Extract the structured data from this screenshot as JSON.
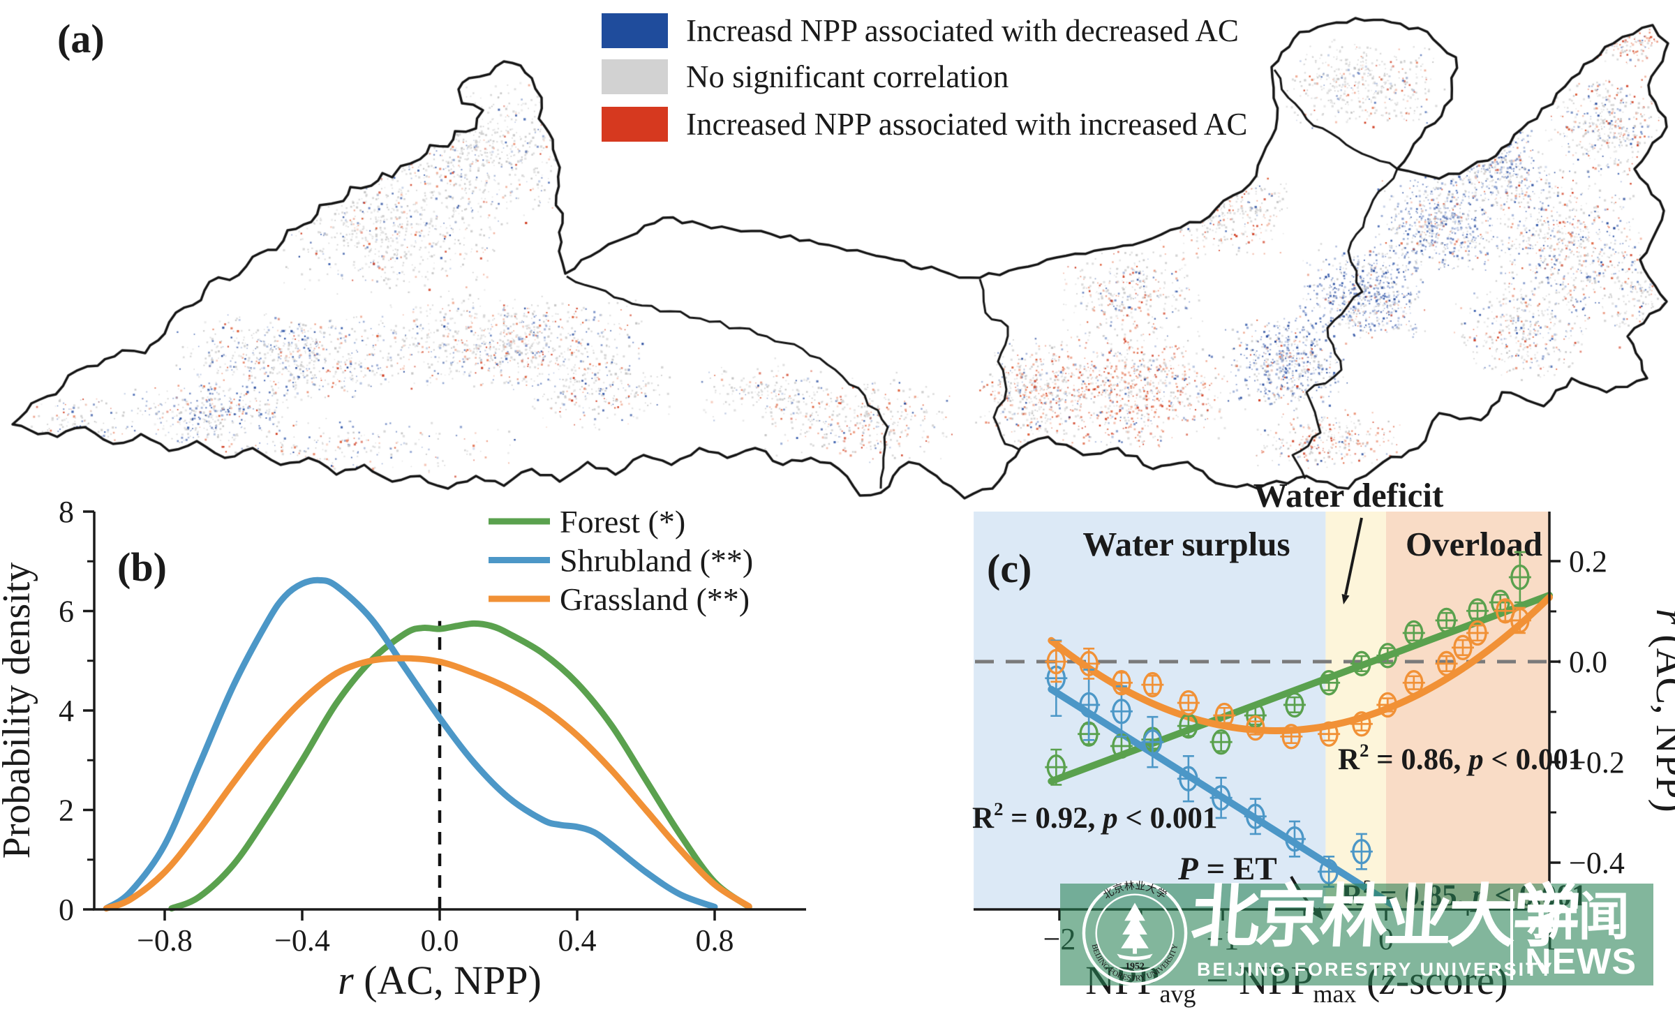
{
  "panel_a": {
    "label": "(a)",
    "legend": [
      {
        "key": "increase-npp-decrease-ac",
        "color": "#1f4c9c",
        "label": "Increasd NPP associated with decreased AC"
      },
      {
        "key": "no-significant",
        "color": "#d2d2d2",
        "label": "No significant correlation"
      },
      {
        "key": "increase-npp-increase-ac",
        "color": "#d6391f",
        "label": "Increased NPP associated with increased AC"
      }
    ],
    "map": {
      "border_color": "#151515",
      "dot_colors": {
        "gray": [
          "#d8d8d8",
          "#cccccc",
          "#c2c2c2"
        ],
        "blue": [
          "#24489b",
          "#3a5fae",
          "#6d86c2",
          "#9db0d6"
        ],
        "red": [
          "#cf3a1e",
          "#dd5c36",
          "#e98666",
          "#f0b09a"
        ]
      }
    }
  },
  "chart_data": [
    {
      "id": "b",
      "type": "line",
      "panel": "(b)",
      "title": "",
      "xlabel": "r (AC, NPP)",
      "xlabel_parts": [
        {
          "t": "r",
          "italic": true
        },
        {
          "t": " (AC, NPP)"
        }
      ],
      "ylabel": "Probability density",
      "xlim": [
        -1.02,
        1.06
      ],
      "ylim": [
        0,
        8
      ],
      "xticks": [
        {
          "v": -0.8,
          "label": "−0.8"
        },
        {
          "v": -0.4,
          "label": "−0.4"
        },
        {
          "v": 0.0,
          "label": "0.0"
        },
        {
          "v": 0.4,
          "label": "0.4"
        },
        {
          "v": 0.8,
          "label": "0.8"
        }
      ],
      "yticks": [
        {
          "v": 0,
          "label": "0"
        },
        {
          "v": 2,
          "label": "2"
        },
        {
          "v": 4,
          "label": "4"
        },
        {
          "v": 6,
          "label": "6"
        },
        {
          "v": 8,
          "label": "8"
        }
      ],
      "yticks_minor": [
        1,
        3,
        5,
        7
      ],
      "vline": {
        "x": 0.0,
        "style": "dashed",
        "color": "#111111",
        "top": 5.8
      },
      "legend_position": "upper right",
      "grid": false,
      "series": [
        {
          "name": "Forest (*)",
          "color": "#5aa14e",
          "x": [
            -0.78,
            -0.7,
            -0.6,
            -0.5,
            -0.4,
            -0.3,
            -0.2,
            -0.1,
            -0.05,
            0.0,
            0.05,
            0.1,
            0.15,
            0.2,
            0.3,
            0.4,
            0.5,
            0.6,
            0.7,
            0.8,
            0.9
          ],
          "y": [
            0.02,
            0.25,
            0.9,
            1.9,
            3.0,
            4.15,
            5.0,
            5.55,
            5.66,
            5.64,
            5.7,
            5.75,
            5.7,
            5.55,
            5.15,
            4.55,
            3.7,
            2.6,
            1.5,
            0.55,
            0.05
          ]
        },
        {
          "name": "Shrubland (**)",
          "color": "#4c97c7",
          "x": [
            -0.97,
            -0.9,
            -0.8,
            -0.7,
            -0.6,
            -0.5,
            -0.45,
            -0.4,
            -0.35,
            -0.3,
            -0.2,
            -0.1,
            0.0,
            0.1,
            0.2,
            0.3,
            0.35,
            0.4,
            0.45,
            0.5,
            0.6,
            0.7,
            0.8
          ],
          "y": [
            0.02,
            0.35,
            1.3,
            2.9,
            4.5,
            5.8,
            6.3,
            6.55,
            6.62,
            6.5,
            5.85,
            4.85,
            3.85,
            2.95,
            2.25,
            1.8,
            1.7,
            1.66,
            1.55,
            1.3,
            0.75,
            0.3,
            0.05
          ]
        },
        {
          "name": "Grassland (**)",
          "color": "#f19136",
          "x": [
            -0.97,
            -0.9,
            -0.8,
            -0.7,
            -0.6,
            -0.5,
            -0.4,
            -0.3,
            -0.2,
            -0.1,
            0.0,
            0.1,
            0.2,
            0.3,
            0.4,
            0.5,
            0.6,
            0.7,
            0.8,
            0.9
          ],
          "y": [
            0.02,
            0.2,
            0.75,
            1.6,
            2.55,
            3.45,
            4.2,
            4.75,
            5.0,
            5.05,
            4.98,
            4.75,
            4.45,
            4.05,
            3.5,
            2.8,
            2.0,
            1.2,
            0.5,
            0.06
          ]
        }
      ]
    },
    {
      "id": "c",
      "type": "scatter",
      "panel": "(c)",
      "xlabel": "NPPavg − NPPmax (z-score)",
      "xlabel_parts": [
        {
          "t": "NPP"
        },
        {
          "t": "avg",
          "sub": true
        },
        {
          "t": " − NPP"
        },
        {
          "t": "max",
          "sub": true
        },
        {
          "t": " ("
        },
        {
          "t": "z",
          "italic": true
        },
        {
          "t": "-score)"
        }
      ],
      "ylabel_right": "r (AC, NPP)",
      "ylabel_parts": [
        {
          "t": "r",
          "italic": true
        },
        {
          "t": " (AC, NPP)"
        }
      ],
      "xlim": [
        -2.525,
        1.0
      ],
      "ylim": [
        -0.493,
        0.298
      ],
      "xticks": [
        {
          "v": -2,
          "label": "−2"
        },
        {
          "v": -1,
          "label": "−1"
        },
        {
          "v": 0,
          "label": "0"
        },
        {
          "v": 1,
          "label": "1"
        }
      ],
      "xticks_minor": [
        -1.5,
        -0.5,
        0.5
      ],
      "yticks": [
        {
          "v": 0.2,
          "label": "0.2"
        },
        {
          "v": 0.0,
          "label": "0.0"
        },
        {
          "v": -0.2,
          "label": "−0.2"
        },
        {
          "v": -0.4,
          "label": "−0.4"
        }
      ],
      "yticks_minor": [
        0.1,
        -0.1,
        -0.3
      ],
      "hline": {
        "y": 0.0,
        "style": "dashed",
        "color": "#7a7a7a"
      },
      "regions": [
        {
          "label": "Water surplus",
          "from": -2.525,
          "to": -0.37,
          "color": "#dcE9f6"
        },
        {
          "label": "Water deficit",
          "from": -0.37,
          "to": 0.0,
          "color": "#fdf5da"
        },
        {
          "label": "Overload",
          "from": 0.0,
          "to": 1.0,
          "color": "#f9dcc6"
        }
      ],
      "annotations": {
        "p_et": "P = ET",
        "p_et_parts": [
          {
            "t": "P",
            "italic": true
          },
          {
            "t": " = ET"
          }
        ]
      },
      "series": [
        {
          "name": "Forest",
          "color": "#5aa14e",
          "r2": "0.92",
          "p": "< 0.001",
          "trend": {
            "type": "linear",
            "from": [
              -2.05,
              -0.238
            ],
            "to": [
              1.0,
              0.132
            ]
          },
          "points": [
            [
              -2.02,
              -0.21,
              0.035
            ],
            [
              -1.82,
              -0.144,
              0.02
            ],
            [
              -1.62,
              -0.168,
              0.018
            ],
            [
              -1.43,
              -0.155,
              0.018
            ],
            [
              -1.21,
              -0.128,
              0.02
            ],
            [
              -1.01,
              -0.16,
              0.018
            ],
            [
              -0.8,
              -0.107,
              0.018
            ],
            [
              -0.56,
              -0.086,
              0.015
            ],
            [
              -0.35,
              -0.042,
              0.015
            ],
            [
              -0.15,
              -0.004,
              0.015
            ],
            [
              0.01,
              0.012,
              0.015
            ],
            [
              0.17,
              0.057,
              0.015
            ],
            [
              0.37,
              0.082,
              0.015
            ],
            [
              0.56,
              0.101,
              0.015
            ],
            [
              0.7,
              0.118,
              0.015
            ],
            [
              0.82,
              0.168,
              0.05
            ]
          ]
        },
        {
          "name": "Shrubland",
          "color": "#4c97c7",
          "r2": "0.85",
          "p": "< 0.001",
          "trend": {
            "type": "linear",
            "from": [
              -2.05,
              -0.055
            ],
            "to": [
              0.07,
              -0.49
            ]
          },
          "points": [
            [
              -2.02,
              -0.033,
              0.075
            ],
            [
              -1.82,
              -0.086,
              0.07
            ],
            [
              -1.62,
              -0.099,
              0.05
            ],
            [
              -1.43,
              -0.16,
              0.05
            ],
            [
              -1.21,
              -0.233,
              0.045
            ],
            [
              -1.01,
              -0.271,
              0.04
            ],
            [
              -0.8,
              -0.308,
              0.035
            ],
            [
              -0.56,
              -0.353,
              0.035
            ],
            [
              -0.35,
              -0.418,
              0.03
            ],
            [
              -0.15,
              -0.378,
              0.035
            ]
          ]
        },
        {
          "name": "Grassland",
          "color": "#f19136",
          "r2": "0.86",
          "p": "< 0.001",
          "trend": {
            "type": "quadratic",
            "through": [
              [
                -2.05,
                0.042
              ],
              [
                -0.55,
                -0.136
              ],
              [
                1.0,
                0.128
              ]
            ]
          },
          "points": [
            [
              -2.02,
              0.0,
              0.04
            ],
            [
              -1.82,
              -0.004,
              0.03
            ],
            [
              -1.62,
              -0.042,
              0.02
            ],
            [
              -1.43,
              -0.046,
              0.018
            ],
            [
              -1.21,
              -0.082,
              0.015
            ],
            [
              -0.99,
              -0.107,
              0.015
            ],
            [
              -0.8,
              -0.132,
              0.013
            ],
            [
              -0.58,
              -0.149,
              0.013
            ],
            [
              -0.35,
              -0.144,
              0.013
            ],
            [
              -0.15,
              -0.124,
              0.013
            ],
            [
              0.01,
              -0.086,
              0.013
            ],
            [
              0.17,
              -0.042,
              0.013
            ],
            [
              0.37,
              -0.004,
              0.015
            ],
            [
              0.47,
              0.028,
              0.015
            ],
            [
              0.56,
              0.057,
              0.015
            ],
            [
              0.73,
              0.101,
              0.02
            ],
            [
              0.82,
              0.082,
              0.025
            ]
          ]
        }
      ]
    }
  ],
  "watermark": {
    "background": "rgba(40,130,85,0.58)",
    "seal": {
      "year": "1952",
      "ring_top": "北京林业大学",
      "ring_bottom": "BEIJING FORESTRY UNIVERSITY"
    },
    "calligraphy": "北京林业大学",
    "subtitle": "BEIJING FORESTRY UNIVERSITY",
    "news_cn": "新闻",
    "news_en": "NEWS"
  }
}
